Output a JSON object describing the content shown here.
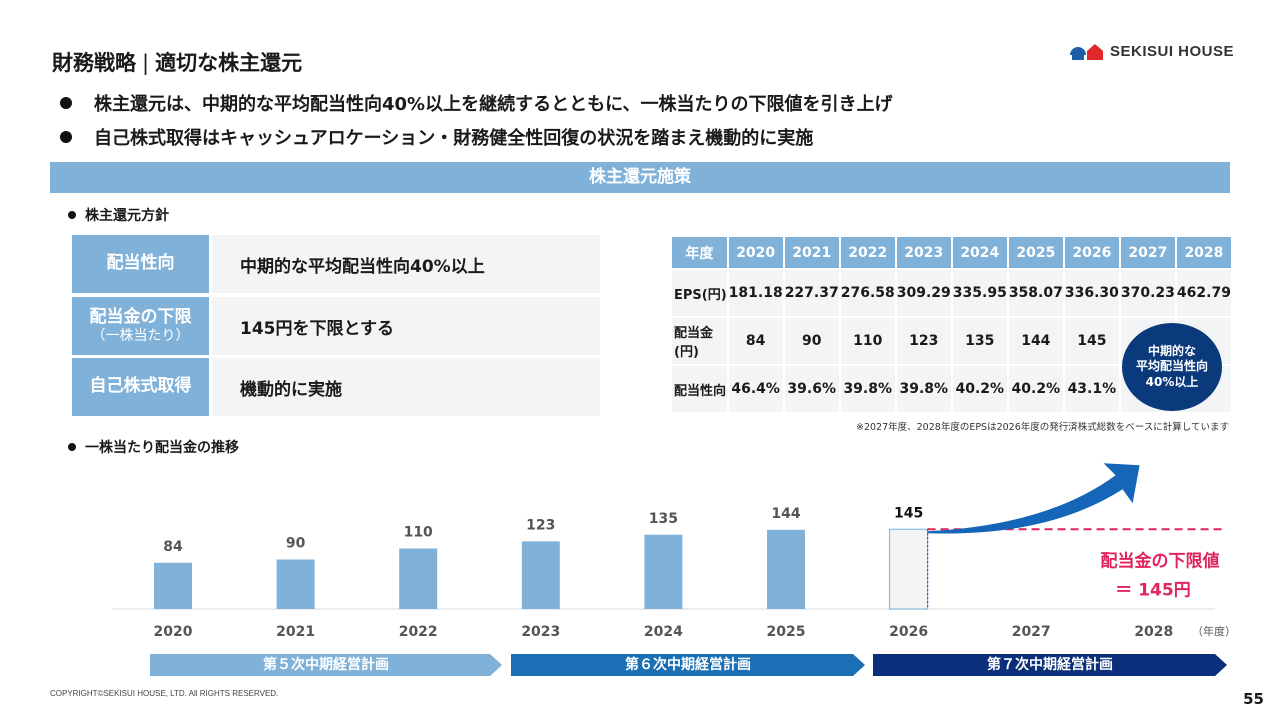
{
  "header": {
    "title": "財務戦略",
    "separator": "|",
    "subtitle": "適切な株主還元",
    "logo_text": "SEKISUI HOUSE"
  },
  "bullets": [
    "株主還元は、中期的な平均配当性向40%以上を継続するとともに、一株当たりの下限値を引き上げ",
    "自己株式取得はキャッシュアロケーション・財務健全性回復の状況を踏まえ機動的に実施"
  ],
  "banner": "株主還元施策",
  "policy": {
    "label": "株主還元方針",
    "rows": [
      {
        "key": "配当性向",
        "key_sub": "",
        "value": "中期的な平均配当性向40%以上"
      },
      {
        "key": "配当金の下限",
        "key_sub": "（一株当たり）",
        "value": "145円を下限とする"
      },
      {
        "key": "自己株式取得",
        "key_sub": "",
        "value": "機動的に実施"
      }
    ]
  },
  "table": {
    "headers": [
      "年度",
      "2020",
      "2021",
      "2022",
      "2023",
      "2024",
      "2025",
      "2026",
      "2027",
      "2028"
    ],
    "rows": [
      {
        "label": "EPS(円)",
        "values": [
          "181.18",
          "227.37",
          "276.58",
          "309.29",
          "335.95",
          "358.07",
          "336.30",
          "370.23",
          "462.79"
        ]
      },
      {
        "label": "配当金(円)",
        "values": [
          "84",
          "90",
          "110",
          "123",
          "135",
          "144",
          "145",
          "",
          ""
        ]
      },
      {
        "label": "配当性向",
        "values": [
          "46.4%",
          "39.6%",
          "39.8%",
          "39.8%",
          "40.2%",
          "40.2%",
          "43.1%",
          "",
          ""
        ]
      }
    ],
    "circle_lines": [
      "中期的な",
      "平均配当性向",
      "40%以上"
    ],
    "note": "※2027年度、2028年度のEPSは2026年度の発行済株式総数をベースに計算しています"
  },
  "dividend_section_label": "一株当たり配当金の推移",
  "chart_data": {
    "type": "bar",
    "categories": [
      "2020",
      "2021",
      "2022",
      "2023",
      "2024",
      "2025",
      "2026",
      "2027",
      "2028"
    ],
    "values": [
      84,
      90,
      110,
      123,
      135,
      144,
      145,
      null,
      null
    ],
    "x_unit_label": "（年度）",
    "floor_label_line1": "配当金の下限値",
    "floor_label_line2": "＝ 145円",
    "floor_value": 145,
    "colors": {
      "bar": "#7fb1d9",
      "bar_last_fill": "#f2f4f6",
      "bar_last_stroke": "#7fb1d9",
      "floor_line": "#e0245e",
      "arrow": "#1565b8"
    }
  },
  "plans": [
    "第５次中期経営計画",
    "第６次中期経営計画",
    "第７次中期経営計画"
  ],
  "plan_colors": [
    "#7fb1d9",
    "#1a6fb5",
    "#0b2f7a"
  ],
  "footer": {
    "copyright": "COPYRIGHT©SEKISUI HOUSE, LTD. All RIGHTS RESERVED.",
    "page": "55"
  }
}
